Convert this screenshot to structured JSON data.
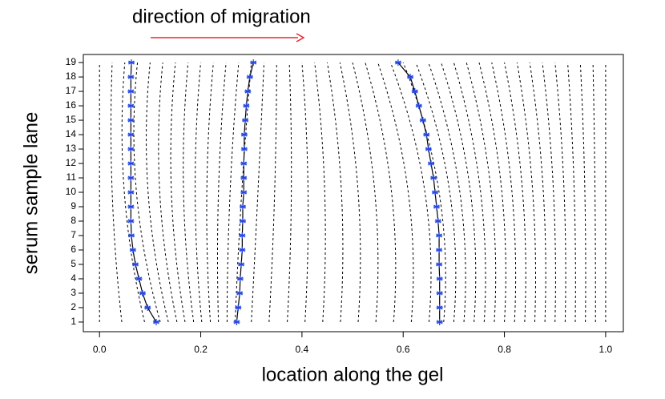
{
  "chart_data": {
    "type": "warp",
    "title": "direction of migration",
    "xlabel": "location along the gel",
    "ylabel": "serum sample lane",
    "xlim": [
      -0.032,
      1.035
    ],
    "ylim": [
      0.33,
      19.56
    ],
    "xticks": [
      {
        "value": 0,
        "label": "0.0"
      },
      0.2,
      0.4,
      0.6,
      0.8,
      {
        "value": 1,
        "label": "1.0"
      }
    ],
    "yticks": [
      1,
      2,
      3,
      4,
      5,
      6,
      7,
      8,
      9,
      10,
      11,
      12,
      13,
      14,
      15,
      16,
      17,
      18,
      19
    ],
    "y": [
      1,
      2,
      3,
      4,
      5,
      6,
      7,
      8,
      9,
      10,
      11,
      12,
      13,
      14,
      15,
      16,
      17,
      18,
      19
    ],
    "marker_color": "#2748e0",
    "line_color": "#000000",
    "arrow_color": "#e8262a",
    "series": [
      {
        "x": [
          0.112,
          0.095,
          0.085,
          0.078,
          0.071,
          0.066,
          0.063,
          0.062,
          0.062,
          0.062,
          0.062,
          0.062,
          0.062,
          0.062,
          0.062,
          0.062,
          0.062,
          0.062,
          0.063
        ]
      },
      {
        "x": [
          0.271,
          0.274,
          0.277,
          0.278,
          0.28,
          0.282,
          0.282,
          0.283,
          0.283,
          0.285,
          0.285,
          0.285,
          0.286,
          0.286,
          0.288,
          0.29,
          0.293,
          0.297,
          0.304
        ]
      },
      {
        "x": [
          0.672,
          0.672,
          0.672,
          0.672,
          0.671,
          0.671,
          0.671,
          0.669,
          0.666,
          0.663,
          0.66,
          0.655,
          0.65,
          0.646,
          0.639,
          0.631,
          0.623,
          0.614,
          0.59
        ]
      }
    ],
    "dashed_lanes": [
      1,
      10,
      19
    ],
    "dashed_lines": [
      [
        0,
        0,
        0
      ],
      [
        0.044,
        0.025,
        0.025
      ],
      [
        0.089,
        0.049,
        0.05
      ],
      [
        0.12,
        0.073,
        0.075
      ],
      [
        0.136,
        0.096,
        0.1
      ],
      [
        0.153,
        0.119,
        0.125
      ],
      [
        0.169,
        0.142,
        0.15
      ],
      [
        0.186,
        0.166,
        0.175
      ],
      [
        0.202,
        0.189,
        0.2
      ],
      [
        0.219,
        0.212,
        0.225
      ],
      [
        0.235,
        0.235,
        0.25
      ],
      [
        0.252,
        0.258,
        0.275
      ],
      [
        0.268,
        0.281,
        0.3
      ],
      [
        0.3,
        0.313,
        0.325
      ],
      [
        0.335,
        0.346,
        0.35
      ],
      [
        0.371,
        0.379,
        0.375
      ],
      [
        0.406,
        0.412,
        0.4
      ],
      [
        0.441,
        0.445,
        0.425
      ],
      [
        0.476,
        0.478,
        0.45
      ],
      [
        0.511,
        0.511,
        0.475
      ],
      [
        0.546,
        0.544,
        0.5
      ],
      [
        0.581,
        0.577,
        0.525
      ],
      [
        0.616,
        0.61,
        0.55
      ],
      [
        0.651,
        0.643,
        0.575
      ],
      [
        0.68,
        0.671,
        0.6
      ],
      [
        0.7,
        0.692,
        0.625
      ],
      [
        0.72,
        0.712,
        0.65
      ],
      [
        0.74,
        0.733,
        0.675
      ],
      [
        0.76,
        0.753,
        0.7
      ],
      [
        0.78,
        0.774,
        0.725
      ],
      [
        0.8,
        0.795,
        0.75
      ],
      [
        0.82,
        0.815,
        0.775
      ],
      [
        0.84,
        0.836,
        0.8
      ],
      [
        0.86,
        0.856,
        0.825
      ],
      [
        0.88,
        0.877,
        0.85
      ],
      [
        0.9,
        0.897,
        0.875
      ],
      [
        0.92,
        0.918,
        0.9
      ],
      [
        0.94,
        0.938,
        0.925
      ],
      [
        0.96,
        0.959,
        0.95
      ],
      [
        0.98,
        0.979,
        0.975
      ],
      [
        1,
        1,
        1
      ]
    ]
  }
}
